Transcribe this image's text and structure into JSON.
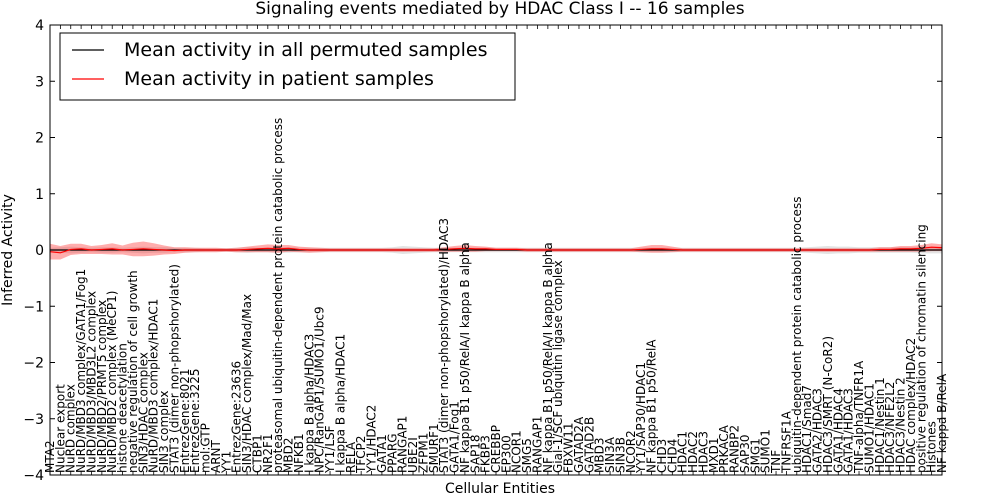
{
  "chart_data": {
    "type": "line",
    "title": "Signaling events mediated by HDAC Class I -- 16 samples",
    "xlabel": "Cellular Entities",
    "ylabel": "Inferred Activity",
    "ylim": [
      -4,
      4
    ],
    "yticks": [
      -4,
      -3,
      -2,
      -1,
      0,
      1,
      2,
      3,
      4
    ],
    "legend": {
      "placement": "top-left",
      "entries": [
        {
          "label": "Mean activity in all permuted samples",
          "color": "#000000"
        },
        {
          "label": "Mean activity in patient samples",
          "color": "#ff0000"
        }
      ]
    },
    "categories": [
      "MTA2",
      "Nuclear export",
      "NuRD complex",
      "NuRD/MBD3 complex/GATA1/Fog1",
      "NuRD/MBD3/MBD3L2 complex",
      "NuRD/MBD2/PRMT5 complex",
      "NuRD/MBD2 complex (MeCP1)",
      "histone deacetylation",
      "negative regulation of cell growth",
      "SIN3/HDAC complex",
      "NuRD/MBD3 complex/HDAC1",
      "SIN3 complex",
      "STAT3 (dimer non-phopshorylated)",
      "EntrezGene:8021",
      "EntrezGene:3225",
      "mol:GTP",
      "ARNT",
      "YY1",
      "EntrezGene:23636",
      "SIN3/HDAC complex/Mad/Max",
      "CTBP1",
      "NR2F1",
      "proteasomal ubiquitin-dependent protein catabolic process",
      "MBD2",
      "NFKB1",
      "I kappa B alpha/HDAC3",
      "NPC/RanGAP1/SUMO1/Ubc9",
      "YY1/LSF",
      "I kappa B alpha/HDAC1",
      "RELA",
      "TFCP2",
      "YY1/HDAC2",
      "GATA1",
      "PPARG",
      "RANGAP1",
      "UBE2I",
      "ZFPM1",
      "SMURF1",
      "STAT3 (dimer non-phopshorylated)/HDAC3",
      "GATA1/Fog1",
      "NF kappa B1 p50/RelA/I kappa B alpha",
      "SAP18",
      "FKBP3",
      "CREBBP",
      "EP300",
      "NCOR1",
      "SMG5",
      "RANGAP1",
      "NF kappa B1 p50/RelA/I kappa B alpha",
      "Gial-1/SCF ubiquitin ligase complex",
      "FBXW11",
      "GATAD2A",
      "GATAD2B",
      "MBD3",
      "SIN3A",
      "SIN3B",
      "NCOR2",
      "YY1/SAP30/HDAC1",
      "NF kappa B1 p50/RelA",
      "CHD3",
      "CHD4",
      "HDAC1",
      "HDAC2",
      "HDAC3",
      "MXD1",
      "PRKACA",
      "RANBP2",
      "SAP30",
      "SMG1",
      "SUMO1",
      "TNF",
      "TNFRSF1A",
      "ubiquitin-dependent protein catabolic process",
      "HDAC1/Smad7",
      "GATA2/HDAC3",
      "HDAC3/SMRT (N-CoR2)",
      "GATA1/HDAC4",
      "GATA1/HDAC3",
      "TNF-alpha/TNFR1A",
      "SUMO1/HDAC1",
      "HDAC1/Nestin 1",
      "HDAC3/NFE2L2",
      "HDAC3/Nestin 2",
      "HDAC complex/HDAC2",
      "positive regulation of chromatin silencing",
      "Histones",
      "NF kappa B/RelA"
    ],
    "series": [
      {
        "name": "Mean activity in all permuted samples",
        "color": "#000000",
        "values": [
          0,
          0,
          0,
          0,
          0,
          0,
          0,
          0,
          0,
          0,
          0,
          0,
          0,
          0,
          0,
          0,
          0,
          0,
          0,
          0,
          0,
          0,
          0,
          0,
          0,
          0,
          0,
          0,
          0,
          0,
          0,
          0,
          0,
          0,
          0,
          0,
          0,
          0,
          0,
          0,
          0,
          0,
          0,
          0,
          0,
          0,
          0,
          0,
          0,
          0,
          0,
          0,
          0,
          0,
          0,
          0,
          0,
          0,
          0,
          0,
          0,
          0,
          0,
          0,
          0,
          0,
          0,
          0,
          0,
          0,
          0,
          0,
          0,
          0,
          0,
          0,
          0,
          0,
          0,
          0,
          0,
          0,
          0,
          0,
          0,
          0,
          0
        ],
        "band": [
          0.04,
          0.05,
          0.06,
          0.05,
          0.04,
          0.05,
          0.05,
          0.04,
          0.05,
          0.06,
          0.05,
          0.05,
          0.04,
          0.04,
          0.04,
          0.03,
          0.03,
          0.03,
          0.04,
          0.05,
          0.04,
          0.04,
          0.05,
          0.05,
          0.04,
          0.04,
          0.04,
          0.04,
          0.04,
          0.04,
          0.04,
          0.04,
          0.04,
          0.05,
          0.07,
          0.06,
          0.05,
          0.04,
          0.04,
          0.04,
          0.04,
          0.04,
          0.04,
          0.04,
          0.04,
          0.04,
          0.04,
          0.04,
          0.04,
          0.04,
          0.04,
          0.04,
          0.04,
          0.04,
          0.04,
          0.04,
          0.04,
          0.04,
          0.04,
          0.04,
          0.04,
          0.04,
          0.04,
          0.04,
          0.04,
          0.04,
          0.04,
          0.04,
          0.04,
          0.04,
          0.04,
          0.04,
          0.04,
          0.05,
          0.06,
          0.07,
          0.06,
          0.06,
          0.05,
          0.05,
          0.05,
          0.05,
          0.05,
          0.05,
          0.06,
          0.06,
          0.06
        ]
      },
      {
        "name": "Mean activity in patient samples",
        "color": "#ff0000",
        "values": [
          -0.03,
          -0.05,
          0.01,
          0.02,
          0.0,
          0.01,
          0.02,
          0.0,
          0.01,
          0.02,
          0.01,
          0.0,
          -0.01,
          0.0,
          0.0,
          0.0,
          0.0,
          0.0,
          0.0,
          0.01,
          0.02,
          0.03,
          0.02,
          0.03,
          0.01,
          0.0,
          0.0,
          0.0,
          0.0,
          0.0,
          0.0,
          0.0,
          0.0,
          0.0,
          0.0,
          0.0,
          0.0,
          0.0,
          0.01,
          0.02,
          0.03,
          0.02,
          0.02,
          0.01,
          0.01,
          0.01,
          0.0,
          0.0,
          0.0,
          0.0,
          0.0,
          0.0,
          0.0,
          0.0,
          0.0,
          0.0,
          0.0,
          0.01,
          0.02,
          0.02,
          0.01,
          0.0,
          0.0,
          0.0,
          0.0,
          0.0,
          0.0,
          0.0,
          0.0,
          0.0,
          0.0,
          0.0,
          0.0,
          0.0,
          0.0,
          0.0,
          0.0,
          0.0,
          0.0,
          0.0,
          0.01,
          0.01,
          0.02,
          0.02,
          0.03,
          0.05,
          0.04
        ],
        "band": [
          0.14,
          0.12,
          0.1,
          0.09,
          0.07,
          0.08,
          0.1,
          0.08,
          0.12,
          0.13,
          0.11,
          0.08,
          0.06,
          0.05,
          0.04,
          0.04,
          0.04,
          0.03,
          0.04,
          0.05,
          0.06,
          0.07,
          0.07,
          0.06,
          0.05,
          0.05,
          0.04,
          0.03,
          0.03,
          0.03,
          0.03,
          0.03,
          0.03,
          0.03,
          0.03,
          0.03,
          0.03,
          0.03,
          0.04,
          0.05,
          0.06,
          0.05,
          0.04,
          0.03,
          0.03,
          0.03,
          0.03,
          0.03,
          0.03,
          0.03,
          0.03,
          0.03,
          0.03,
          0.03,
          0.03,
          0.03,
          0.03,
          0.05,
          0.07,
          0.07,
          0.05,
          0.03,
          0.03,
          0.03,
          0.03,
          0.03,
          0.03,
          0.03,
          0.03,
          0.03,
          0.03,
          0.03,
          0.03,
          0.03,
          0.03,
          0.03,
          0.03,
          0.03,
          0.03,
          0.03,
          0.04,
          0.04,
          0.05,
          0.05,
          0.06,
          0.07,
          0.06
        ]
      }
    ]
  }
}
